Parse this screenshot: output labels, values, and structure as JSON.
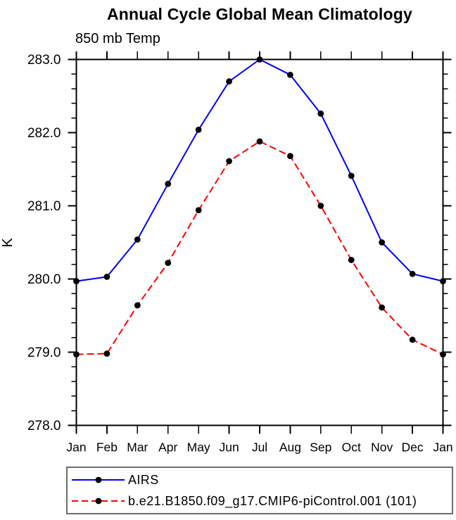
{
  "title": "Annual Cycle Global Mean Climatology",
  "subtitle": "850 mb Temp",
  "y_axis_label": "K",
  "legend": {
    "position": "bottom",
    "entries": [
      {
        "label": "AIRS",
        "line_color": "#0000ff",
        "line_style": "solid",
        "marker": "filled-circle",
        "marker_color": "#000000"
      },
      {
        "label": "b.e21.B1850.f09_g17.CMIP6-piControl.001 (101)",
        "line_color": "#ff0000",
        "line_style": "dashed",
        "marker": "filled-circle",
        "marker_color": "#000000"
      }
    ]
  },
  "chart_data": {
    "type": "line",
    "title": "Annual Cycle Global Mean Climatology",
    "subtitle": "850 mb Temp",
    "xlabel": "",
    "ylabel": "K",
    "categories": [
      "Jan",
      "Feb",
      "Mar",
      "Apr",
      "May",
      "Jun",
      "Jul",
      "Aug",
      "Sep",
      "Oct",
      "Nov",
      "Dec",
      "Jan"
    ],
    "ylim": [
      278.0,
      283.0
    ],
    "ytick_interval": 1.0,
    "ytick_labels": [
      "278.0",
      "279.0",
      "280.0",
      "281.0",
      "282.0",
      "283.0"
    ],
    "minor_tick_interval": 0.2,
    "grid": false,
    "legend_position": "bottom",
    "series": [
      {
        "name": "AIRS",
        "color": "#0000ff",
        "style": "solid",
        "marker": "filled-circle",
        "marker_color": "#000000",
        "values": [
          279.97,
          280.03,
          280.54,
          281.3,
          282.04,
          282.7,
          283.0,
          282.79,
          282.26,
          281.41,
          280.5,
          280.07,
          279.97
        ]
      },
      {
        "name": "b.e21.B1850.f09_g17.CMIP6-piControl.001 (101)",
        "color": "#ff0000",
        "style": "dashed",
        "marker": "filled-circle",
        "marker_color": "#000000",
        "values": [
          278.97,
          278.98,
          279.64,
          280.22,
          280.94,
          281.61,
          281.88,
          281.68,
          281.0,
          280.26,
          279.61,
          279.17,
          278.97
        ]
      }
    ]
  }
}
